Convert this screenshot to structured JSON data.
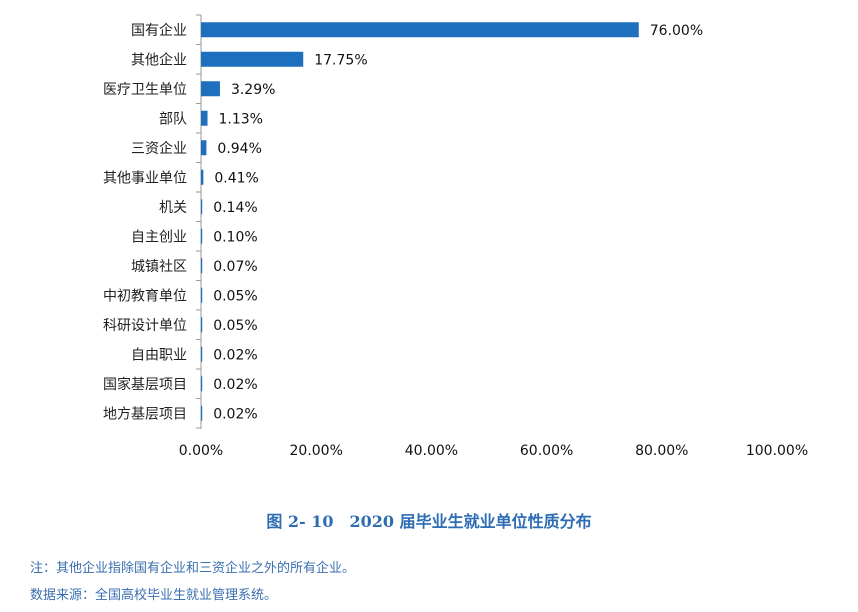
{
  "chart_data": {
    "type": "bar",
    "orientation": "horizontal",
    "categories": [
      "国有企业",
      "其他企业",
      "医疗卫生单位",
      "部队",
      "三资企业",
      "其他事业单位",
      "机关",
      "自主创业",
      "城镇社区",
      "中初教育单位",
      "科研设计单位",
      "自由职业",
      "国家基层项目",
      "地方基层项目"
    ],
    "values": [
      76.0,
      17.75,
      3.29,
      1.13,
      0.94,
      0.41,
      0.14,
      0.1,
      0.07,
      0.05,
      0.05,
      0.02,
      0.02,
      0.02
    ],
    "value_labels": [
      "76.00%",
      "17.75%",
      "3.29%",
      "1.13%",
      "0.94%",
      "0.41%",
      "0.14%",
      "0.10%",
      "0.07%",
      "0.05%",
      "0.05%",
      "0.02%",
      "0.02%",
      "0.02%"
    ],
    "xlim": [
      0,
      100
    ],
    "xticks": [
      "0.00%",
      "20.00%",
      "40.00%",
      "60.00%",
      "80.00%",
      "100.00%"
    ],
    "bar_color": "#1f6fbf",
    "grid": false,
    "legend": "none"
  },
  "caption": "图 2- 10　2020 届毕业生就业单位性质分布",
  "notes": {
    "note1": "注：其他企业指除国有企业和三资企业之外的所有企业。",
    "note2": "数据来源：全国高校毕业生就业管理系统。"
  },
  "colors": {
    "caption": "#2e6db4",
    "notes": "#3a6fb0",
    "axis": "#999999"
  }
}
